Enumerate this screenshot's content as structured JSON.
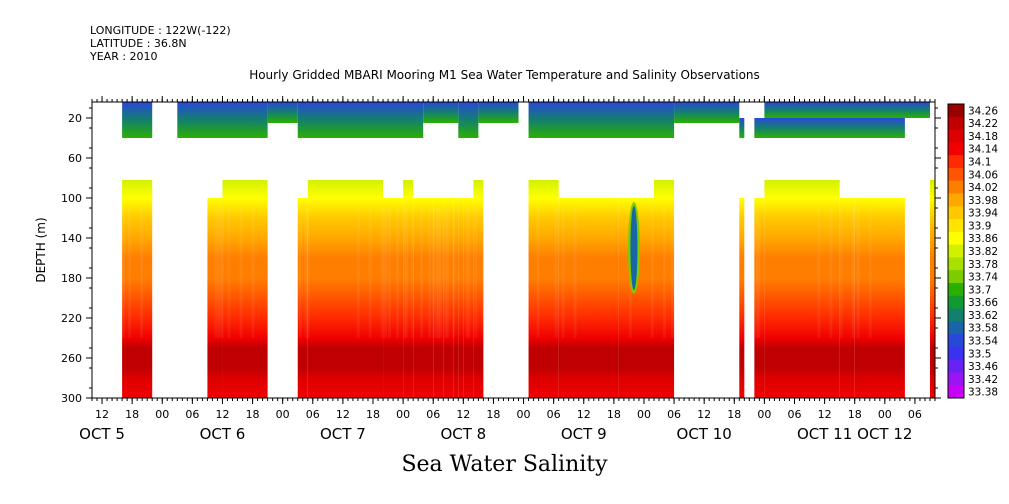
{
  "header": {
    "longitude": "LONGITUDE : 122W(-122)",
    "latitude": "LATITUDE : 36.8N",
    "year": "YEAR : 2010"
  },
  "chart_data": {
    "type": "heatmap",
    "title": "Hourly Gridded MBARI Mooring M1 Sea Water Temperature and Salinity Observations",
    "xlabel": "Sea Water Salinity",
    "ylabel": "DEPTH (m)",
    "x_range_hours": [
      "2010-10-05T10:00",
      "2010-10-12T10:00"
    ],
    "x_hour_ticks": [
      {
        "t": "2010-10-05T12:00",
        "label": "12"
      },
      {
        "t": "2010-10-05T18:00",
        "label": "18"
      },
      {
        "t": "2010-10-06T00:00",
        "label": "00"
      },
      {
        "t": "2010-10-06T06:00",
        "label": "06"
      },
      {
        "t": "2010-10-06T12:00",
        "label": "12"
      },
      {
        "t": "2010-10-06T18:00",
        "label": "18"
      },
      {
        "t": "2010-10-07T00:00",
        "label": "00"
      },
      {
        "t": "2010-10-07T06:00",
        "label": "06"
      },
      {
        "t": "2010-10-07T12:00",
        "label": "12"
      },
      {
        "t": "2010-10-07T18:00",
        "label": "18"
      },
      {
        "t": "2010-10-08T00:00",
        "label": "00"
      },
      {
        "t": "2010-10-08T06:00",
        "label": "06"
      },
      {
        "t": "2010-10-08T12:00",
        "label": "12"
      },
      {
        "t": "2010-10-08T18:00",
        "label": "18"
      },
      {
        "t": "2010-10-09T00:00",
        "label": "00"
      },
      {
        "t": "2010-10-09T06:00",
        "label": "06"
      },
      {
        "t": "2010-10-09T12:00",
        "label": "12"
      },
      {
        "t": "2010-10-09T18:00",
        "label": "18"
      },
      {
        "t": "2010-10-10T00:00",
        "label": "00"
      },
      {
        "t": "2010-10-10T06:00",
        "label": "06"
      },
      {
        "t": "2010-10-10T12:00",
        "label": "12"
      },
      {
        "t": "2010-10-10T18:00",
        "label": "18"
      },
      {
        "t": "2010-10-11T00:00",
        "label": "00"
      },
      {
        "t": "2010-10-11T06:00",
        "label": "06"
      },
      {
        "t": "2010-10-11T12:00",
        "label": "12"
      },
      {
        "t": "2010-10-11T18:00",
        "label": "18"
      },
      {
        "t": "2010-10-12T00:00",
        "label": "00"
      },
      {
        "t": "2010-10-12T06:00",
        "label": "06"
      }
    ],
    "day_labels": [
      {
        "t": "2010-10-05T12:00",
        "label": "OCT  5"
      },
      {
        "t": "2010-10-06T12:00",
        "label": "OCT  6"
      },
      {
        "t": "2010-10-07T12:00",
        "label": "OCT  7"
      },
      {
        "t": "2010-10-08T12:00",
        "label": "OCT  8"
      },
      {
        "t": "2010-10-09T12:00",
        "label": "OCT  9"
      },
      {
        "t": "2010-10-10T12:00",
        "label": "OCT 10"
      },
      {
        "t": "2010-10-11T12:00",
        "label": "OCT 11"
      },
      {
        "t": "2010-10-12T00:00",
        "label": "OCT 12"
      }
    ],
    "ylim": [
      300,
      4
    ],
    "y_ticks": [
      "20",
      "60",
      "100",
      "140",
      "180",
      "220",
      "260",
      "300"
    ],
    "y_tick_values": [
      20,
      60,
      100,
      140,
      180,
      220,
      260,
      300
    ],
    "colorbar": {
      "labels": [
        "34.26",
        "34.22",
        "34.18",
        "34.14",
        "34.1",
        "34.06",
        "34.02",
        "33.98",
        "33.94",
        "33.9",
        "33.86",
        "33.82",
        "33.78",
        "33.74",
        "33.7",
        "33.66",
        "33.62",
        "33.58",
        "33.54",
        "33.5",
        "33.46",
        "33.42",
        "33.38"
      ],
      "colors": [
        "#9a0000",
        "#c00000",
        "#dc0000",
        "#f00000",
        "#ff2a00",
        "#ff5400",
        "#ff7e00",
        "#ffa800",
        "#ffc800",
        "#ffe400",
        "#ffff00",
        "#d2f000",
        "#a8e000",
        "#7ccc00",
        "#2bb000",
        "#129a32",
        "#13806e",
        "#1a64a8",
        "#2848d8",
        "#3a32f0",
        "#6a22f4",
        "#9a14f4",
        "#c800f8"
      ]
    },
    "data_segments": [
      {
        "start": "2010-10-05T16:00",
        "end": "2010-10-05T22:00",
        "top": 82,
        "bottom": 300
      },
      {
        "start": "2010-10-06T09:00",
        "end": "2010-10-06T12:00",
        "top": 100,
        "bottom": 300
      },
      {
        "start": "2010-10-06T12:00",
        "end": "2010-10-06T21:00",
        "top": 82,
        "bottom": 300
      },
      {
        "start": "2010-10-07T03:00",
        "end": "2010-10-07T05:00",
        "top": 100,
        "bottom": 300
      },
      {
        "start": "2010-10-07T05:00",
        "end": "2010-10-07T20:00",
        "top": 82,
        "bottom": 300
      },
      {
        "start": "2010-10-07T20:00",
        "end": "2010-10-08T00:00",
        "top": 100,
        "bottom": 300
      },
      {
        "start": "2010-10-08T00:00",
        "end": "2010-10-08T02:00",
        "top": 82,
        "bottom": 300
      },
      {
        "start": "2010-10-08T02:00",
        "end": "2010-10-08T06:00",
        "top": 100,
        "bottom": 300
      },
      {
        "start": "2010-10-08T06:00",
        "end": "2010-10-08T08:00",
        "top": 100,
        "bottom": 300
      },
      {
        "start": "2010-10-08T08:00",
        "end": "2010-10-08T10:00",
        "top": 100,
        "bottom": 300
      },
      {
        "start": "2010-10-08T10:00",
        "end": "2010-10-08T11:00",
        "top": 100,
        "bottom": 300
      },
      {
        "start": "2010-10-08T11:00",
        "end": "2010-10-08T12:00",
        "top": 100,
        "bottom": 300
      },
      {
        "start": "2010-10-08T12:00",
        "end": "2010-10-08T14:00",
        "top": 100,
        "bottom": 300
      },
      {
        "start": "2010-10-08T14:00",
        "end": "2010-10-08T16:00",
        "top": 82,
        "bottom": 300
      },
      {
        "start": "2010-10-09T01:00",
        "end": "2010-10-09T07:00",
        "top": 82,
        "bottom": 300
      },
      {
        "start": "2010-10-09T07:00",
        "end": "2010-10-09T19:00",
        "top": 100,
        "bottom": 300
      },
      {
        "start": "2010-10-09T19:00",
        "end": "2010-10-10T02:00",
        "top": 100,
        "bottom": 300
      },
      {
        "start": "2010-10-10T02:00",
        "end": "2010-10-10T06:00",
        "top": 82,
        "bottom": 300
      },
      {
        "start": "2010-10-10T19:00",
        "end": "2010-10-10T20:00",
        "top": 100,
        "bottom": 300
      },
      {
        "start": "2010-10-10T22:00",
        "end": "2010-10-11T00:00",
        "top": 100,
        "bottom": 300
      },
      {
        "start": "2010-10-11T00:00",
        "end": "2010-10-11T15:00",
        "top": 82,
        "bottom": 300
      },
      {
        "start": "2010-10-11T15:00",
        "end": "2010-10-11T18:00",
        "top": 100,
        "bottom": 300
      },
      {
        "start": "2010-10-11T18:00",
        "end": "2010-10-12T04:00",
        "top": 100,
        "bottom": 300
      },
      {
        "start": "2010-10-12T09:00",
        "end": "2010-10-12T10:00",
        "top": 82,
        "bottom": 300
      }
    ],
    "surface_segments": [
      {
        "start": "2010-10-05T16:00",
        "end": "2010-10-05T22:00",
        "top": 4,
        "bottom": 40
      },
      {
        "start": "2010-10-06T03:00",
        "end": "2010-10-06T21:00",
        "top": 4,
        "bottom": 40
      },
      {
        "start": "2010-10-06T21:00",
        "end": "2010-10-07T03:00",
        "top": 4,
        "bottom": 25
      },
      {
        "start": "2010-10-07T03:00",
        "end": "2010-10-08T04:00",
        "top": 4,
        "bottom": 40
      },
      {
        "start": "2010-10-08T04:00",
        "end": "2010-10-08T11:00",
        "top": 4,
        "bottom": 25
      },
      {
        "start": "2010-10-08T11:00",
        "end": "2010-10-08T15:00",
        "top": 4,
        "bottom": 40
      },
      {
        "start": "2010-10-08T15:00",
        "end": "2010-10-08T23:00",
        "top": 4,
        "bottom": 25
      },
      {
        "start": "2010-10-09T01:00",
        "end": "2010-10-10T06:00",
        "top": 4,
        "bottom": 40
      },
      {
        "start": "2010-10-10T06:00",
        "end": "2010-10-10T19:00",
        "top": 4,
        "bottom": 25
      },
      {
        "start": "2010-10-10T19:00",
        "end": "2010-10-10T20:00",
        "top": 20,
        "bottom": 40
      },
      {
        "start": "2010-10-10T22:00",
        "end": "2010-10-12T04:00",
        "top": 20,
        "bottom": 40
      },
      {
        "start": "2010-10-11T00:00",
        "end": "2010-10-12T09:00",
        "top": 4,
        "bottom": 20
      }
    ],
    "profile_depths": [
      82,
      100,
      120,
      140,
      160,
      180,
      200,
      220,
      240,
      250,
      260,
      270,
      280,
      300
    ],
    "profile_values": [
      33.82,
      33.86,
      33.92,
      33.98,
      34.02,
      34.04,
      34.08,
      34.12,
      34.16,
      34.2,
      34.22,
      34.2,
      34.18,
      34.14
    ],
    "surface_values": [
      33.54,
      33.62,
      33.7
    ],
    "anomaly": {
      "t": "2010-10-09T22:00",
      "top": 104,
      "bottom": 196,
      "value": 33.58
    }
  }
}
